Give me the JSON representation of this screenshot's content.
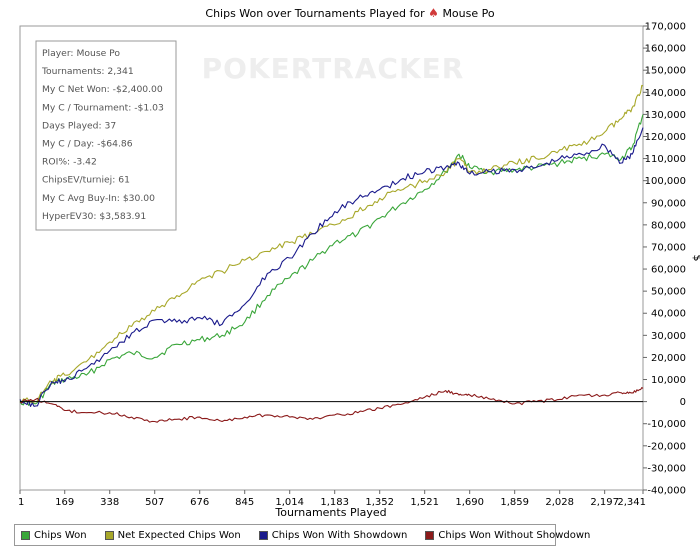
{
  "chart_data": {
    "type": "line",
    "title_prefix": "Chips Won over Tournaments Played for",
    "title_player": "Mouse Po",
    "watermark": "POKERTRACKER",
    "xlabel": "Tournaments Played",
    "ylabel": "$",
    "xlim": [
      1,
      2341
    ],
    "ylim": [
      -40000,
      170000
    ],
    "xticks": [
      "1",
      "169",
      "338",
      "507",
      "676",
      "845",
      "1,014",
      "1,183",
      "1,352",
      "1,521",
      "1,690",
      "1,859",
      "2,028",
      "2,197",
      "2,341"
    ],
    "xtick_values": [
      1,
      169,
      338,
      507,
      676,
      845,
      1014,
      1183,
      1352,
      1521,
      1690,
      1859,
      2028,
      2197,
      2341
    ],
    "yticks": [
      -40000,
      -30000,
      -20000,
      -10000,
      0,
      10000,
      20000,
      30000,
      40000,
      50000,
      60000,
      70000,
      80000,
      90000,
      100000,
      110000,
      120000,
      130000,
      140000,
      150000,
      160000,
      170000
    ],
    "ytick_labels": [
      "-40,000",
      "-30,000",
      "-20,000",
      "-10,000",
      "0",
      "10,000",
      "20,000",
      "30,000",
      "40,000",
      "50,000",
      "60,000",
      "70,000",
      "80,000",
      "90,000",
      "100,000",
      "110,000",
      "120,000",
      "130,000",
      "140,000",
      "150,000",
      "160,000",
      "170,000"
    ],
    "grid": false,
    "legend_position": "bottom",
    "series": [
      {
        "name": "Chips Won",
        "color": "#3aa63a",
        "x": [
          1,
          60,
          120,
          169,
          250,
          338,
          420,
          507,
          590,
          676,
          760,
          845,
          930,
          1014,
          1100,
          1183,
          1270,
          1352,
          1440,
          1521,
          1600,
          1650,
          1690,
          1770,
          1859,
          1940,
          2028,
          2110,
          2197,
          2260,
          2300,
          2341
        ],
        "y": [
          0,
          -1000,
          8000,
          10000,
          12000,
          19000,
          22000,
          20000,
          26000,
          28000,
          30000,
          36000,
          48000,
          56000,
          64000,
          72000,
          76000,
          83000,
          90000,
          96000,
          104000,
          112000,
          106000,
          104000,
          105000,
          106000,
          108000,
          110000,
          112000,
          110000,
          115000,
          130000
        ]
      },
      {
        "name": "Net Expected Chips Won",
        "color": "#a8a82a",
        "x": [
          1,
          60,
          120,
          169,
          250,
          338,
          420,
          507,
          590,
          676,
          760,
          845,
          930,
          1014,
          1100,
          1183,
          1270,
          1352,
          1440,
          1521,
          1600,
          1650,
          1690,
          1770,
          1859,
          1940,
          2028,
          2110,
          2197,
          2260,
          2300,
          2341
        ],
        "y": [
          1000,
          0,
          9000,
          12000,
          18000,
          27000,
          34000,
          41000,
          48000,
          55000,
          59000,
          64000,
          68000,
          72000,
          76000,
          80000,
          86000,
          92000,
          96000,
          100000,
          104000,
          110000,
          104000,
          105000,
          108000,
          110000,
          114000,
          116000,
          122000,
          128000,
          133000,
          143000
        ]
      },
      {
        "name": "Chips Won With Showdown",
        "color": "#1a1a8c",
        "x": [
          1,
          60,
          120,
          169,
          250,
          338,
          420,
          507,
          590,
          676,
          760,
          845,
          930,
          1014,
          1100,
          1183,
          1270,
          1352,
          1440,
          1521,
          1600,
          1650,
          1690,
          1770,
          1859,
          1940,
          2028,
          2110,
          2197,
          2260,
          2300,
          2341
        ],
        "y": [
          1000,
          -2000,
          9000,
          9000,
          15000,
          23000,
          31000,
          37000,
          36000,
          38000,
          35000,
          44000,
          58000,
          65000,
          76000,
          86000,
          92000,
          96000,
          101000,
          104000,
          106000,
          108000,
          103000,
          104000,
          105000,
          106000,
          110000,
          112000,
          116000,
          108000,
          112000,
          124000
        ]
      },
      {
        "name": "Chips Won Without Showdown",
        "color": "#8b1a1a",
        "x": [
          1,
          60,
          120,
          169,
          250,
          338,
          420,
          507,
          590,
          676,
          760,
          845,
          930,
          1014,
          1100,
          1183,
          1270,
          1352,
          1440,
          1521,
          1600,
          1650,
          1690,
          1770,
          1859,
          1940,
          2028,
          2110,
          2197,
          2260,
          2300,
          2341
        ],
        "y": [
          0,
          1000,
          -1000,
          -4000,
          -5000,
          -5000,
          -7000,
          -9000,
          -8000,
          -7000,
          -9000,
          -7000,
          -6000,
          -7000,
          -8000,
          -6000,
          -5000,
          -3000,
          -1000,
          2000,
          5000,
          3000,
          3000,
          1000,
          -1000,
          0,
          1000,
          3000,
          3000,
          4000,
          4000,
          6000
        ]
      }
    ],
    "stats_box": [
      "Player: Mouse Po",
      "Tournaments: 2,341",
      "My C Net Won: -$2,400.00",
      "My C / Tournament: -$1.03",
      "Days Played: 37",
      "My C / Day: -$64.86",
      "ROI%: -3.42",
      "ChipsEV/turniej: 61",
      "My C Avg Buy-In: $30.00",
      "HyperEV30: $3,583.91"
    ]
  }
}
